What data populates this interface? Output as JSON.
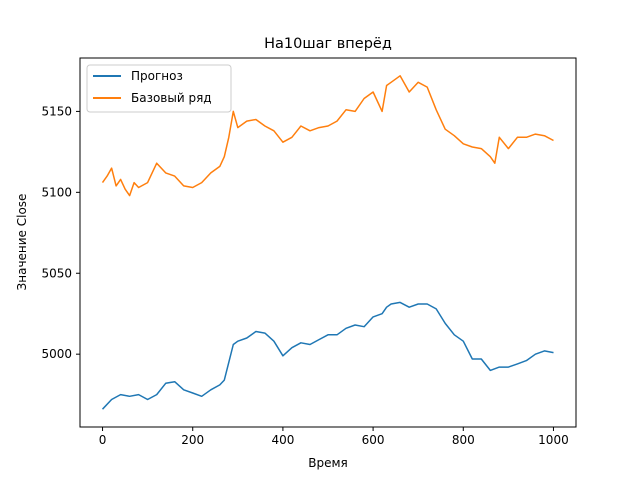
{
  "chart_data": {
    "type": "line",
    "title": "На10шаг вперёд",
    "xlabel": "Время",
    "ylabel": "Значение Close",
    "xlim": [
      -50,
      1050
    ],
    "ylim": [
      4955,
      5183
    ],
    "xticks": [
      0,
      200,
      400,
      600,
      800,
      1000
    ],
    "yticks": [
      5000,
      5050,
      5100,
      5150
    ],
    "legend_position": "top-left",
    "grid": false,
    "series": [
      {
        "name": "Прогноз",
        "color": "#1f77b4",
        "x": [
          0,
          20,
          40,
          60,
          80,
          100,
          120,
          140,
          160,
          180,
          200,
          220,
          240,
          260,
          270,
          280,
          290,
          300,
          320,
          340,
          360,
          380,
          400,
          420,
          440,
          460,
          480,
          500,
          520,
          540,
          560,
          580,
          600,
          620,
          630,
          640,
          660,
          680,
          700,
          720,
          740,
          760,
          780,
          800,
          820,
          840,
          860,
          880,
          900,
          920,
          940,
          960,
          980,
          1000
        ],
        "y": [
          4966,
          4972,
          4975,
          4974,
          4975,
          4972,
          4975,
          4982,
          4983,
          4978,
          4976,
          4974,
          4978,
          4981,
          4984,
          4995,
          5006,
          5008,
          5010,
          5014,
          5013,
          5008,
          4999,
          5004,
          5007,
          5006,
          5009,
          5012,
          5012,
          5016,
          5018,
          5017,
          5023,
          5025,
          5029,
          5031,
          5032,
          5029,
          5031,
          5031,
          5028,
          5019,
          5012,
          5008,
          4997,
          4997,
          4990,
          4992,
          4992,
          4994,
          4996,
          5000,
          5002,
          5001
        ]
      },
      {
        "name": "Базовый ряд",
        "color": "#ff7f0e",
        "x": [
          0,
          10,
          20,
          30,
          40,
          50,
          60,
          70,
          80,
          100,
          120,
          140,
          160,
          180,
          200,
          220,
          240,
          260,
          270,
          280,
          290,
          300,
          320,
          340,
          360,
          380,
          400,
          420,
          440,
          460,
          480,
          500,
          520,
          540,
          560,
          580,
          600,
          620,
          630,
          640,
          660,
          680,
          700,
          720,
          740,
          760,
          780,
          800,
          820,
          840,
          860,
          870,
          880,
          900,
          920,
          940,
          960,
          980,
          1000
        ],
        "y": [
          5106,
          5110,
          5115,
          5104,
          5108,
          5102,
          5098,
          5106,
          5103,
          5106,
          5118,
          5112,
          5110,
          5104,
          5103,
          5106,
          5112,
          5116,
          5122,
          5134,
          5150,
          5140,
          5144,
          5145,
          5141,
          5138,
          5131,
          5134,
          5141,
          5138,
          5140,
          5141,
          5144,
          5151,
          5150,
          5158,
          5162,
          5150,
          5166,
          5168,
          5172,
          5162,
          5168,
          5165,
          5151,
          5139,
          5135,
          5130,
          5128,
          5127,
          5122,
          5118,
          5134,
          5127,
          5134,
          5134,
          5136,
          5135,
          5132
        ]
      }
    ]
  }
}
